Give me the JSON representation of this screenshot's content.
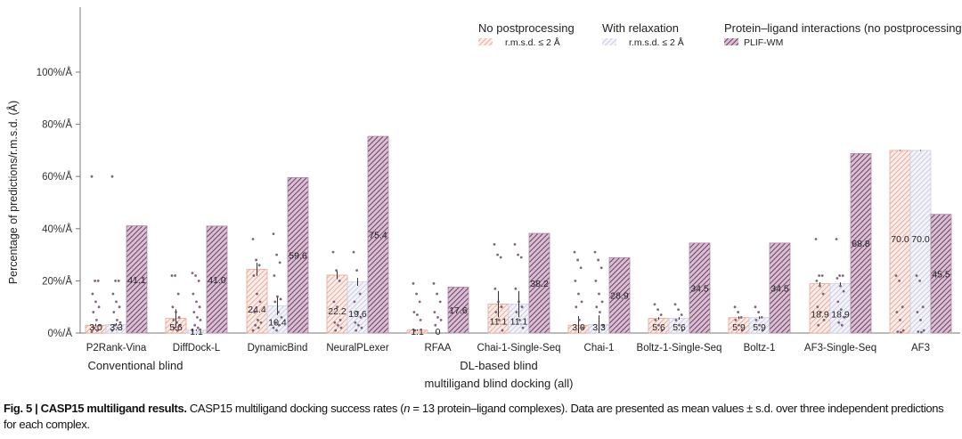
{
  "chart_data": {
    "type": "bar",
    "ylabel": "Percentage of predictions/r.m.s.d. (Å)",
    "ylim": [
      0,
      100
    ],
    "yticks": [
      "0%/Å",
      "20%/Å",
      "40%/Å",
      "60%/Å",
      "80%/Å",
      "100%/Å"
    ],
    "ytick_values": [
      0,
      20,
      40,
      60,
      80,
      100
    ],
    "grid": false,
    "legend_placement": "top-right",
    "legend": {
      "groups": [
        {
          "title": "No postprocessing",
          "entry": "r.m.s.d. ≤ 2 Å",
          "series": 0
        },
        {
          "title": "With relaxation",
          "entry": "r.m.s.d. ≤ 2 Å",
          "series": 1
        },
        {
          "title": "Protein–ligand interactions (no postprocessing)",
          "entry": "PLIF-WM",
          "series": 2
        }
      ]
    },
    "categories": [
      "P2Rank-Vina",
      "DiffDock-L",
      "DynamicBind",
      "NeuralPLexer",
      "RFAA",
      "Chai-1-Single-Seq",
      "Chai-1",
      "Boltz-1-Single-Seq",
      "Boltz-1",
      "AF3-Single-Seq",
      "AF3"
    ],
    "category_groups": [
      {
        "label": "Conventional blind",
        "categories": [
          "P2Rank-Vina",
          "DiffDock-L"
        ]
      },
      {
        "label": "DL-based blind",
        "categories": [
          "DynamicBind",
          "NeuralPLexer",
          "RFAA",
          "Chai-1-Single-Seq",
          "Chai-1",
          "Boltz-1-Single-Seq",
          "Boltz-1",
          "AF3-Single-Seq",
          "AF3"
        ]
      }
    ],
    "xlabel": "multiligand blind docking (all)",
    "series": [
      {
        "name": "No postprocessing r.m.s.d. ≤ 2 Å",
        "color": "#e8a090",
        "values": [
          3.0,
          5.6,
          24.4,
          22.2,
          1.1,
          11.1,
          3.0,
          5.6,
          5.9,
          18.9,
          70.0
        ],
        "labels": [
          "3.0",
          "5.6",
          "24.4",
          "22.2",
          "1.1",
          "11.1",
          "3.0",
          "5.6",
          "5.9",
          "18.9",
          "70.0"
        ],
        "errors": [
          0.5,
          3.5,
          2.5,
          1.5,
          0.3,
          5.0,
          3.5,
          0.5,
          0.5,
          0.5,
          0.2
        ]
      },
      {
        "name": "With relaxation r.m.s.d. ≤ 2 Å",
        "color": "#c4c4e0",
        "values": [
          3.3,
          1.1,
          10.4,
          19.6,
          0,
          11.1,
          3.3,
          5.6,
          5.9,
          18.9,
          70.0
        ],
        "labels": [
          "3.3",
          "1.1",
          "10.4",
          "19.6",
          "0",
          "11.1",
          "3.3",
          "5.6",
          "5.9",
          "18.9",
          "70.0"
        ],
        "errors": [
          0.5,
          0.3,
          3.5,
          1.5,
          0,
          5.0,
          3.5,
          0.5,
          0.5,
          0.5,
          0.2
        ]
      },
      {
        "name": "PLIF-WM",
        "color": "#7a4a6e",
        "values": [
          41.1,
          41.0,
          59.6,
          75.4,
          17.6,
          38.2,
          28.9,
          34.5,
          34.5,
          68.8,
          45.5
        ],
        "labels": [
          "41.1",
          "41.0",
          "59.6",
          "75.4",
          "17.6",
          "38.2",
          "28.9",
          "34.5",
          "34.5",
          "68.8",
          "45.5"
        ]
      }
    ],
    "points": [
      [
        [
          60,
          20,
          20,
          15,
          12,
          10,
          8,
          5,
          3,
          2,
          1,
          0.5
        ],
        [
          60,
          20,
          20,
          15,
          12,
          10,
          8,
          5,
          4,
          3,
          2,
          1
        ]
      ],
      [
        [
          22,
          22,
          15,
          10,
          8,
          6,
          5,
          4,
          3,
          2,
          1
        ],
        [
          23,
          22,
          20,
          15,
          12,
          10,
          8,
          6,
          5,
          3,
          2,
          1
        ]
      ],
      [
        [
          36,
          28,
          26,
          22,
          15,
          12,
          8,
          5,
          4,
          3,
          2,
          1
        ],
        [
          38,
          30,
          27,
          22,
          14,
          13,
          12,
          8,
          6,
          4,
          3,
          2,
          1
        ]
      ],
      [
        [
          31,
          24,
          20,
          12,
          10,
          5,
          4,
          3,
          2,
          1
        ],
        [
          31,
          24,
          15,
          12,
          8,
          6,
          4,
          3,
          2,
          1
        ]
      ],
      [
        [
          19,
          15,
          12,
          8,
          7,
          5,
          1
        ],
        [
          19,
          15,
          12,
          8,
          6,
          5,
          3
        ]
      ],
      [
        [
          34,
          30,
          29,
          17,
          12,
          10,
          8,
          5,
          1
        ],
        [
          34,
          30,
          29,
          17,
          12,
          10,
          8,
          5,
          2
        ]
      ],
      [
        [
          31,
          28,
          25,
          20,
          15,
          12,
          10,
          5,
          2
        ],
        [
          31,
          28,
          25,
          20,
          15,
          12,
          10,
          8,
          3
        ]
      ],
      [
        [
          11,
          9,
          7,
          5,
          3,
          1
        ],
        [
          11,
          9,
          7,
          5,
          3,
          1
        ]
      ],
      [
        [
          10,
          8,
          6,
          5,
          3,
          1
        ],
        [
          10,
          8,
          6,
          5,
          3,
          1
        ]
      ],
      [
        [
          36,
          22,
          22,
          20,
          18,
          15,
          10,
          8,
          5,
          3
        ],
        [
          36,
          22,
          22,
          21,
          18,
          16,
          12,
          9,
          6,
          4,
          3
        ]
      ],
      [
        [
          22,
          20,
          10,
          8,
          5,
          1,
          0.5,
          0.3
        ],
        [
          22,
          20,
          10,
          8,
          5,
          1,
          0.5,
          0.3
        ]
      ]
    ]
  },
  "caption": {
    "fig_label": "Fig. 5 | ",
    "title": "CASP15 multiligand results.",
    "text_1": " CASP15 multiligand docking success rates (",
    "n_var": "n",
    "text_2": " = 13 protein–ligand complexes). Data are presented as mean values ± s.d. over three independent predictions for each complex."
  }
}
